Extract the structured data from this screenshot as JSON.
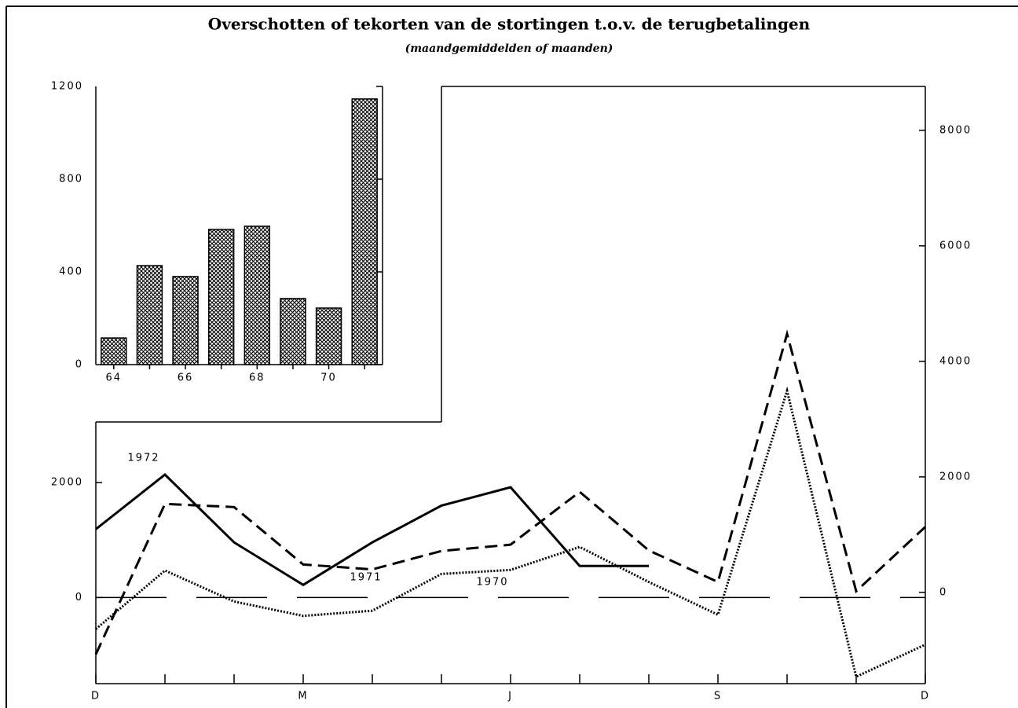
{
  "chart_data": [
    {
      "type": "line",
      "title": "Overschotten of tekorten van de stortingen t.o.v. de terugbetalingen",
      "subtitle": "(maandgemiddelden of maanden)",
      "categories": [
        "D",
        null,
        null,
        "M",
        null,
        null,
        "J",
        null,
        null,
        "S",
        null,
        null,
        "D"
      ],
      "ylim": [
        -1500,
        8900
      ],
      "yticks": [
        0,
        2000
      ],
      "y2lim": [
        -1580,
        8760
      ],
      "y2ticks": [
        0,
        2000,
        4000,
        6000,
        8000
      ],
      "series": [
        {
          "name": "1972",
          "color": "#000000",
          "style": "solid",
          "values": [
            1190,
            2140,
            960,
            220,
            960,
            1600,
            1920,
            550,
            550,
            null,
            null,
            null,
            null
          ]
        },
        {
          "name": "1971",
          "color": "#000000",
          "style": "dashed",
          "values": [
            -990,
            1630,
            1575,
            575,
            490,
            810,
            920,
            1840,
            820,
            270,
            4590,
            110,
            1230
          ]
        },
        {
          "name": "1970",
          "color": "#000000",
          "style": "dotted",
          "values": [
            -550,
            470,
            -70,
            -320,
            -230,
            410,
            480,
            880,
            270,
            -300,
            3600,
            -1380,
            -820
          ]
        }
      ]
    },
    {
      "type": "bar",
      "categories": [
        "64",
        null,
        "66",
        null,
        "68",
        null,
        "70",
        null
      ],
      "values": [
        115,
        427,
        380,
        583,
        597,
        285,
        244,
        1146
      ],
      "ylim": [
        0,
        1200
      ],
      "yticks": [
        0,
        400,
        800,
        1200
      ],
      "color": "#000000"
    }
  ]
}
